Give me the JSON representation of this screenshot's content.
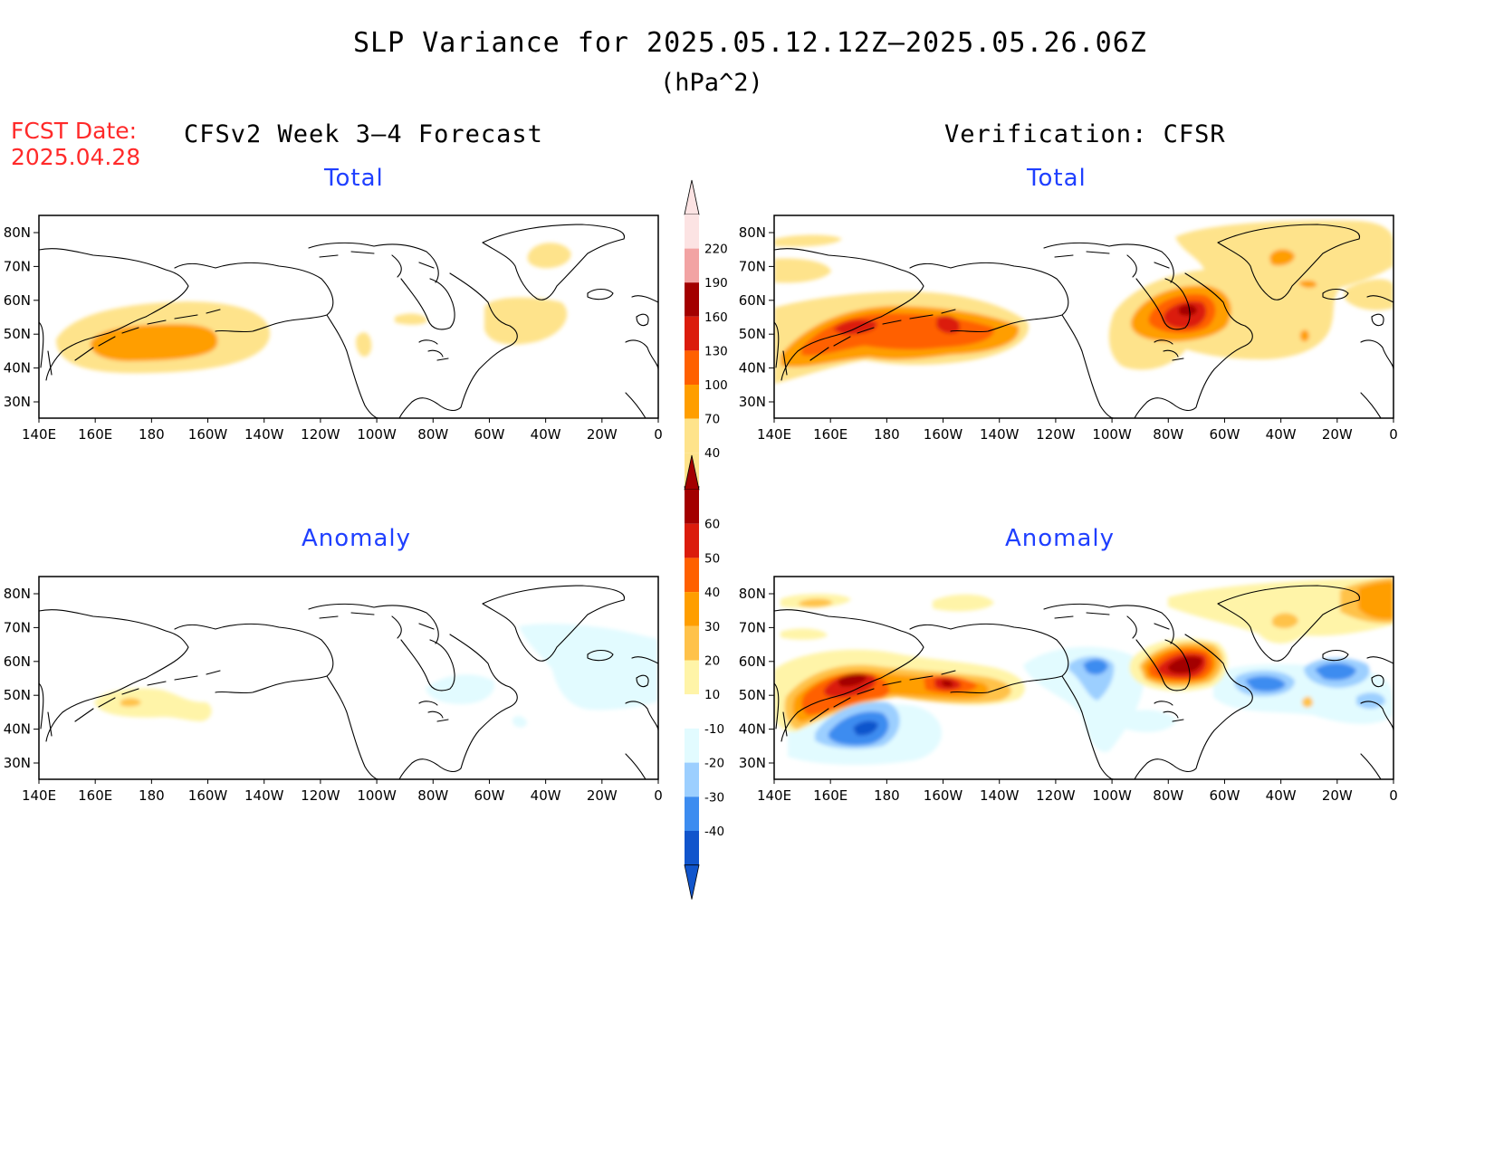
{
  "header": {
    "title": "SLP Variance for 2025.05.12.12Z–2025.05.26.06Z",
    "units": "(hPa^2)",
    "fcst_label": "FCST Date:",
    "fcst_date": "2025.04.28",
    "left_heading": "CFSv2 Week 3–4 Forecast",
    "right_heading": "Verification: CFSR"
  },
  "panels": {
    "fc_total": {
      "title": "Total"
    },
    "vf_total": {
      "title": "Total"
    },
    "fc_anom": {
      "title": "Anomaly"
    },
    "vf_anom": {
      "title": "Anomaly"
    }
  },
  "axes": {
    "lat_ticks": [
      "80N",
      "70N",
      "60N",
      "50N",
      "40N",
      "30N"
    ],
    "lon_ticks": [
      "140E",
      "160E",
      "180",
      "160W",
      "140W",
      "120W",
      "100W",
      "80W",
      "60W",
      "40W",
      "20W",
      "0"
    ]
  },
  "colorbar_total": {
    "labels": [
      "220",
      "190",
      "160",
      "130",
      "100",
      "70",
      "40"
    ],
    "colors": [
      "#fce3e3",
      "#f2a3a3",
      "#a30000",
      "#db1c0c",
      "#ff6000",
      "#ff9e00",
      "#fee38b"
    ]
  },
  "colorbar_anom": {
    "labels": [
      "60",
      "50",
      "40",
      "30",
      "20",
      "10",
      "-10",
      "-20",
      "-30",
      "-40"
    ],
    "colors": [
      "#a30000",
      "#db1c0c",
      "#ff6000",
      "#ff9e00",
      "#ffc24a",
      "#fff4a8",
      "#ffffff",
      "#e2fbff",
      "#9ccfff",
      "#3c8cf0",
      "#1155cc"
    ]
  },
  "chart_data": [
    {
      "type": "heatmap",
      "panel": "CFSv2 Week 3-4 Forecast - Total",
      "variable": "SLP variance (hPa^2)",
      "levels": [
        40,
        70,
        100,
        130,
        160,
        190,
        220
      ],
      "features": [
        {
          "center_lon": -175,
          "center_lat": 48,
          "peak": 85
        },
        {
          "center_lon": -40,
          "center_lat": 72,
          "peak": 50
        },
        {
          "center_lon": -50,
          "center_lat": 55,
          "peak": 50
        },
        {
          "center_lon": -80,
          "center_lat": 55,
          "peak": 45
        }
      ]
    },
    {
      "type": "heatmap",
      "panel": "Verification: CFSR - Total",
      "variable": "SLP variance (hPa^2)",
      "levels": [
        40,
        70,
        100,
        130,
        160,
        190,
        220
      ],
      "features": [
        {
          "center_lon": 170,
          "center_lat": 51,
          "peak": 130
        },
        {
          "center_lon": -160,
          "center_lat": 52,
          "peak": 130
        },
        {
          "center_lon": -75,
          "center_lat": 58,
          "peak": 175
        },
        {
          "center_lon": -40,
          "center_lat": 72,
          "peak": 100
        },
        {
          "center_lon": -40,
          "center_lat": 49,
          "peak": 75
        },
        {
          "center_lon": 160,
          "center_lat": 77,
          "peak": 50
        }
      ]
    },
    {
      "type": "heatmap",
      "panel": "CFSv2 Week 3-4 Forecast - Anomaly",
      "variable": "SLP variance anomaly (hPa^2)",
      "levels": [
        -40,
        -30,
        -20,
        -10,
        10,
        20,
        30,
        40,
        50,
        60
      ],
      "features": [
        {
          "center_lon": 177,
          "center_lat": 47,
          "peak": 25
        },
        {
          "center_lon": -30,
          "center_lat": 60,
          "peak": -12
        },
        {
          "center_lon": -80,
          "center_lat": 52,
          "peak": -11
        }
      ]
    },
    {
      "type": "heatmap",
      "panel": "Verification: CFSR - Anomaly",
      "variable": "SLP variance anomaly (hPa^2)",
      "levels": [
        -40,
        -30,
        -20,
        -10,
        10,
        20,
        30,
        40,
        50,
        60
      ],
      "features": [
        {
          "center_lon": 170,
          "center_lat": 55,
          "peak": 60
        },
        {
          "center_lon": -160,
          "center_lat": 53,
          "peak": 60
        },
        {
          "center_lon": -75,
          "center_lat": 60,
          "peak": 65
        },
        {
          "center_lon": 178,
          "center_lat": 42,
          "peak": -40
        },
        {
          "center_lon": -50,
          "center_lat": 53,
          "peak": -35
        },
        {
          "center_lon": -23,
          "center_lat": 57,
          "peak": -35
        },
        {
          "center_lon": -95,
          "center_lat": 57,
          "peak": -30
        },
        {
          "center_lon": -40,
          "center_lat": 72,
          "peak": 30
        },
        {
          "center_lon": -5,
          "center_lat": 80,
          "peak": 35
        }
      ]
    }
  ]
}
